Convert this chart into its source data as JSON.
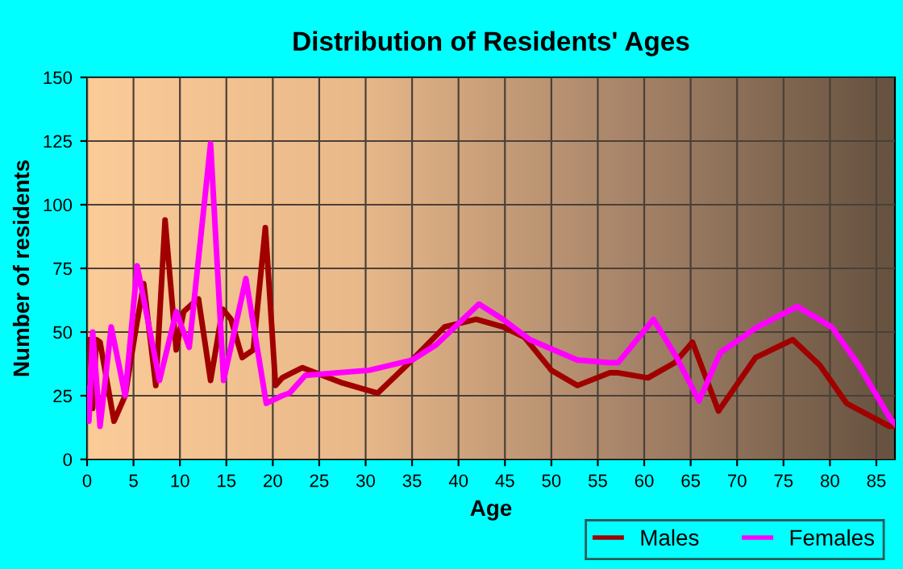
{
  "chart_data": {
    "type": "line",
    "title": "Distribution of Residents' Ages",
    "xlabel": "Age",
    "ylabel": "Number of residents",
    "xlim": [
      0,
      87
    ],
    "xticks": [
      0,
      5,
      10,
      15,
      20,
      25,
      30,
      35,
      40,
      45,
      50,
      55,
      60,
      65,
      70,
      75,
      80,
      85
    ],
    "ylim": [
      0,
      150
    ],
    "yticks": [
      0,
      25,
      50,
      75,
      100,
      125,
      150
    ],
    "grid": true,
    "legend": "bottom right",
    "series": [
      {
        "name": "Males",
        "color": "#a00000",
        "x": [
          0,
          0.3,
          0.6,
          1,
          1.4,
          2.9,
          4.1,
          5.2,
          6.1,
          7.4,
          8.4,
          9.6,
          10.4,
          11.3,
          12,
          13.3,
          14.6,
          15.5,
          16.7,
          17.9,
          19.2,
          20.3,
          21,
          21.8,
          23.2,
          27.5,
          31.3,
          35,
          38.5,
          41.9,
          44.8,
          47.1,
          50,
          52.8,
          56.3,
          57.2,
          60.4,
          63.3,
          65.2,
          68,
          72,
          76,
          78.9,
          81.8,
          86.4,
          87
        ],
        "values": [
          47,
          47,
          20,
          47,
          46,
          15,
          25,
          50,
          69,
          29,
          94,
          43,
          58,
          61,
          63,
          31,
          59,
          55,
          40,
          43,
          91,
          29,
          32,
          33.5,
          36,
          30,
          26,
          39,
          52,
          55,
          52,
          48,
          35,
          29,
          34,
          34,
          32,
          38,
          46,
          19,
          40,
          47,
          37,
          22,
          13,
          13
        ]
      },
      {
        "name": "Females",
        "color": "#ff00ff",
        "x": [
          0,
          0.2,
          0.6,
          1.4,
          2.6,
          4.1,
          5.4,
          7.8,
          9.6,
          11,
          13.3,
          14.7,
          17.1,
          19.3,
          21,
          21.8,
          23.5,
          30.4,
          35,
          37.6,
          42.2,
          44.8,
          47.7,
          52.8,
          56.3,
          57.2,
          61,
          63.5,
          65.9,
          68.2,
          72.2,
          76.5,
          80.2,
          83.1,
          86.5,
          87
        ],
        "values": [
          28,
          15,
          50,
          13,
          52,
          25,
          76,
          31,
          58,
          44,
          124,
          31,
          71,
          22,
          25,
          26,
          33,
          35,
          39,
          45,
          61,
          55,
          47,
          39,
          38,
          38,
          55,
          40,
          23,
          42,
          52,
          60,
          52,
          37,
          16,
          14
        ]
      }
    ]
  }
}
